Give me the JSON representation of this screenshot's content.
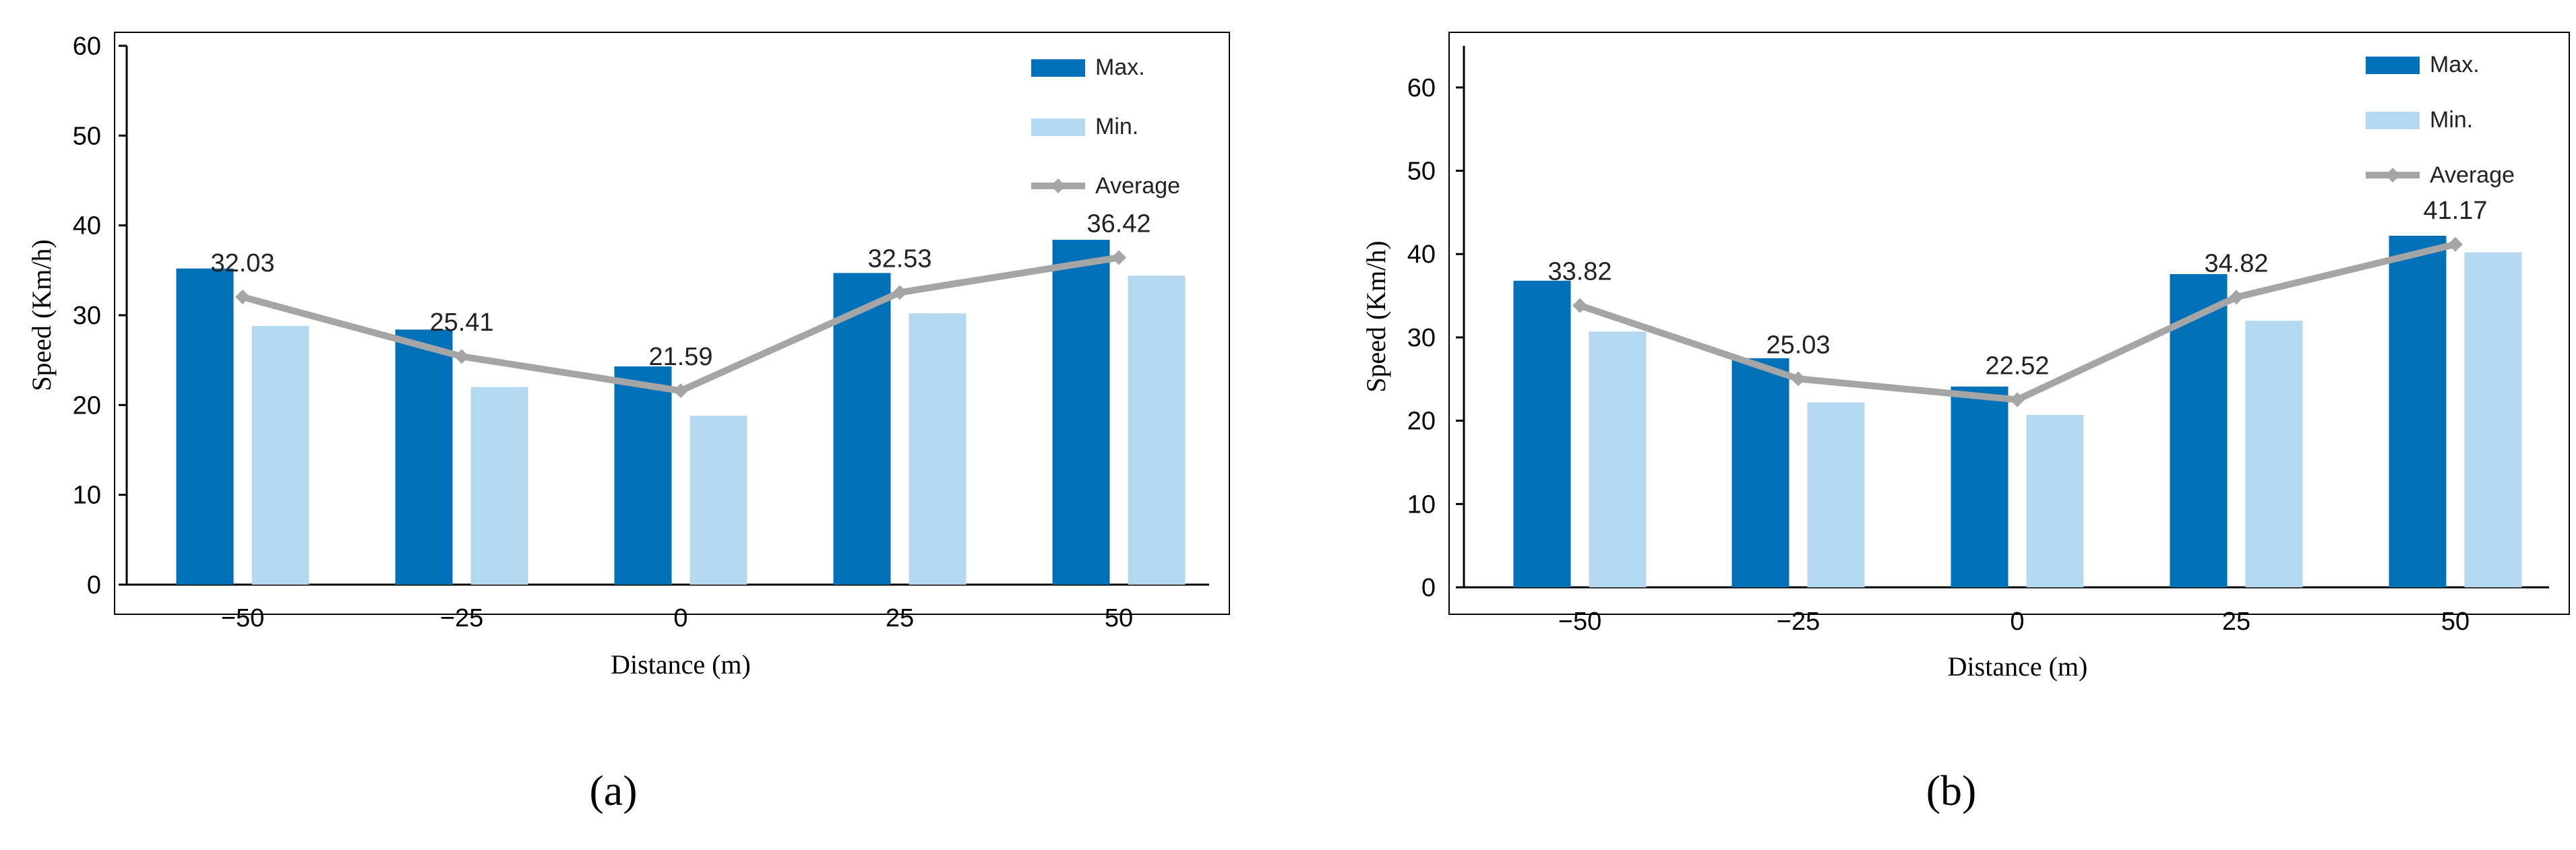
{
  "colors": {
    "max": "#0070B8",
    "min": "#B4D8F0",
    "average": "#A5A5A5",
    "axis": "#000000",
    "frame": "#000000"
  },
  "chart_data": [
    {
      "id": "a",
      "type": "bar",
      "caption": "(a)",
      "title": "",
      "xlabel": "Distance (m)",
      "ylabel": "Speed (Km/h)",
      "categories": [
        "−50",
        "−25",
        "0",
        "25",
        "50"
      ],
      "ylim": [
        0,
        60
      ],
      "yticks": [
        "0",
        "10",
        "20",
        "30",
        "40",
        "50",
        "60"
      ],
      "grid": false,
      "legend_position": "top-right",
      "series": [
        {
          "name": "Max.",
          "kind": "bar",
          "values": [
            35.2,
            28.4,
            24.3,
            34.7,
            38.4
          ]
        },
        {
          "name": "Min.",
          "kind": "bar",
          "values": [
            28.8,
            22.0,
            18.8,
            30.2,
            34.4
          ]
        },
        {
          "name": "Average",
          "kind": "line",
          "values": [
            32.03,
            25.41,
            21.59,
            32.53,
            36.42
          ],
          "labels": [
            "32.03",
            "25.41",
            "21.59",
            "32.53",
            "36.42"
          ]
        }
      ]
    },
    {
      "id": "b",
      "type": "bar",
      "caption": "(b)",
      "title": "",
      "xlabel": "Distance (m)",
      "ylabel": "Speed (Km/h)",
      "categories": [
        "−50",
        "−25",
        "0",
        "25",
        "50"
      ],
      "ylim": [
        0,
        65
      ],
      "yticks": [
        "0",
        "10",
        "20",
        "30",
        "40",
        "50",
        "60"
      ],
      "grid": false,
      "legend_position": "top-right",
      "series": [
        {
          "name": "Max.",
          "kind": "bar",
          "values": [
            36.8,
            27.5,
            24.1,
            37.6,
            42.2
          ]
        },
        {
          "name": "Min.",
          "kind": "bar",
          "values": [
            30.7,
            22.2,
            20.7,
            32.0,
            40.2
          ]
        },
        {
          "name": "Average",
          "kind": "line",
          "values": [
            33.82,
            25.03,
            22.52,
            34.82,
            41.17
          ],
          "labels": [
            "33.82",
            "25.03",
            "22.52",
            "34.82",
            "41.17"
          ]
        }
      ]
    }
  ]
}
